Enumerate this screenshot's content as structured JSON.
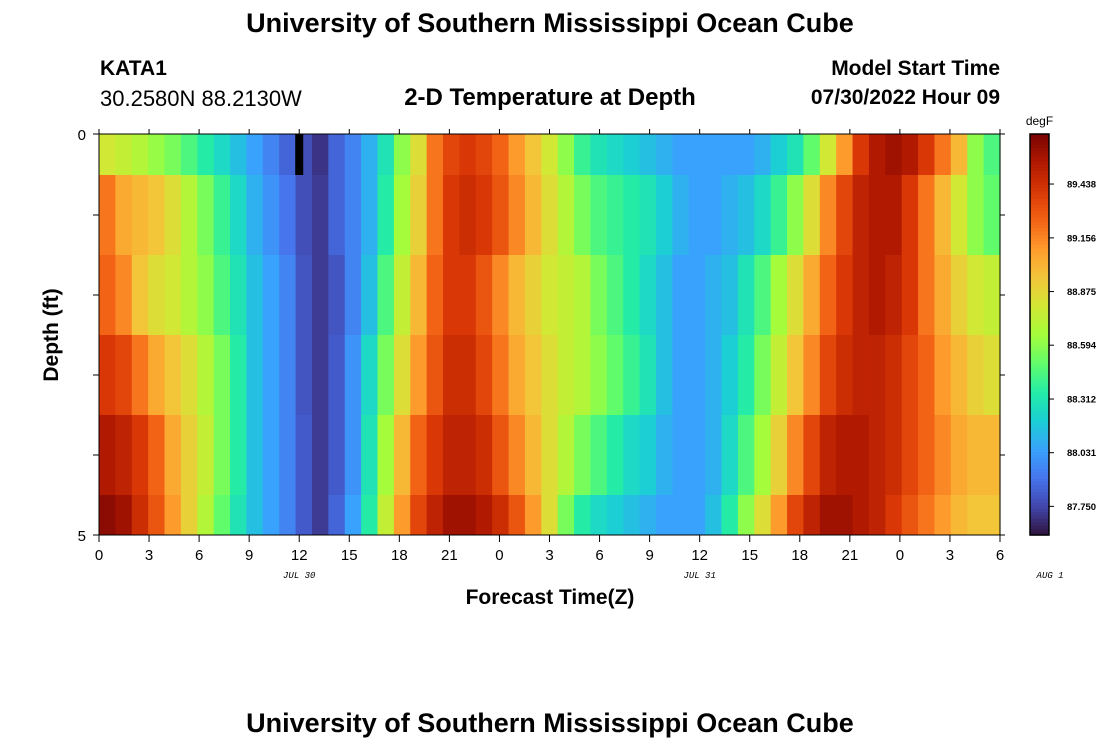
{
  "header": {
    "title_top": "University of Southern Mississippi Ocean Cube",
    "title_bottom": "University of Southern Mississippi Ocean Cube",
    "station_id": "KATA1",
    "station_coords": "30.2580N  88.2130W",
    "plot_title": "2-D Temperature at Depth",
    "start_label": "Model Start Time",
    "start_value": "07/30/2022 Hour 09"
  },
  "chart_data": {
    "type": "heatmap",
    "title": "2-D Temperature at Depth",
    "xlabel": "Forecast Time(Z)",
    "ylabel": "Depth (ft)",
    "x_tick_labels": [
      "0",
      "3",
      "6",
      "9",
      "12",
      "15",
      "18",
      "21",
      "0",
      "3",
      "6",
      "9",
      "12",
      "15",
      "18",
      "21",
      "0",
      "3",
      "6"
    ],
    "x_range_hours": [
      0,
      54
    ],
    "date_labels": [
      {
        "text": "JUL 30",
        "hour": 12
      },
      {
        "text": "JUL 31",
        "hour": 36
      },
      {
        "text": "AUG 1",
        "hour": 57
      }
    ],
    "y_tick_labels": [
      "0",
      "5"
    ],
    "ylim": [
      5,
      0
    ],
    "colorbar": {
      "unit": "degF",
      "min": 87.6,
      "max": 89.7,
      "labels": [
        "87.750",
        "88.031",
        "88.312",
        "88.594",
        "88.875",
        "89.156",
        "89.438"
      ],
      "colors": [
        "#30123b",
        "#4145ab",
        "#4675ed",
        "#39a2fc",
        "#1bcfd4",
        "#24eca6",
        "#61fc6c",
        "#a4fc3b",
        "#d1e834",
        "#f3c63a",
        "#fe9b2d",
        "#f36315",
        "#d93806",
        "#b11901",
        "#7a0402"
      ]
    },
    "x_hours": [
      0,
      1,
      2,
      3,
      4,
      5,
      6,
      7,
      8,
      9,
      10,
      11,
      12,
      13,
      14,
      15,
      16,
      17,
      18,
      19,
      20,
      21,
      22,
      23,
      24,
      25,
      26,
      27,
      28,
      29,
      30,
      31,
      32,
      33,
      34,
      35,
      36,
      37,
      38,
      39,
      40,
      41,
      42,
      43,
      44,
      45,
      46,
      47,
      48,
      49,
      50,
      51,
      52,
      53,
      54
    ],
    "depth_levels_ft": [
      0.25,
      1.0,
      2.0,
      3.0,
      4.0,
      4.75
    ],
    "temperature_degF": [
      [
        88.8,
        88.75,
        88.7,
        88.62,
        88.55,
        88.45,
        88.35,
        88.25,
        88.15,
        88.05,
        87.95,
        87.85,
        87.78,
        87.7,
        87.85,
        87.95,
        88.1,
        88.3,
        88.6,
        88.85,
        89.2,
        89.35,
        89.4,
        89.35,
        89.25,
        89.1,
        88.95,
        88.8,
        88.6,
        88.4,
        88.3,
        88.25,
        88.2,
        88.15,
        88.1,
        88.05,
        88.05,
        88.05,
        88.05,
        88.05,
        88.1,
        88.2,
        88.3,
        88.5,
        88.8,
        89.1,
        89.4,
        89.55,
        89.6,
        89.55,
        89.4,
        89.2,
        89.0,
        88.6,
        88.45
      ],
      [
        89.2,
        89.05,
        89.0,
        88.95,
        88.85,
        88.7,
        88.55,
        88.4,
        88.25,
        88.1,
        88.0,
        87.9,
        87.78,
        87.72,
        87.85,
        87.95,
        88.1,
        88.35,
        88.65,
        88.9,
        89.2,
        89.4,
        89.45,
        89.4,
        89.3,
        89.15,
        89.0,
        88.85,
        88.7,
        88.55,
        88.45,
        88.4,
        88.35,
        88.3,
        88.2,
        88.1,
        88.05,
        88.05,
        88.1,
        88.15,
        88.25,
        88.4,
        88.6,
        88.85,
        89.15,
        89.35,
        89.5,
        89.55,
        89.55,
        89.4,
        89.2,
        89.0,
        88.8,
        88.6,
        88.5
      ],
      [
        89.25,
        89.15,
        88.95,
        88.85,
        88.8,
        88.7,
        88.6,
        88.45,
        88.3,
        88.15,
        88.05,
        87.95,
        87.8,
        87.72,
        87.8,
        87.95,
        88.15,
        88.45,
        88.75,
        89.0,
        89.25,
        89.4,
        89.4,
        89.3,
        89.15,
        89.0,
        88.9,
        88.8,
        88.75,
        88.7,
        88.55,
        88.45,
        88.35,
        88.25,
        88.15,
        88.05,
        88.05,
        88.1,
        88.15,
        88.3,
        88.45,
        88.65,
        88.85,
        89.05,
        89.25,
        89.4,
        89.5,
        89.55,
        89.5,
        89.4,
        89.2,
        89.05,
        88.9,
        88.8,
        88.75
      ],
      [
        89.4,
        89.35,
        89.2,
        89.05,
        88.95,
        88.85,
        88.7,
        88.55,
        88.35,
        88.15,
        88.05,
        87.95,
        87.8,
        87.72,
        87.82,
        88.0,
        88.25,
        88.55,
        88.85,
        89.1,
        89.3,
        89.45,
        89.45,
        89.35,
        89.2,
        89.05,
        88.95,
        88.85,
        88.75,
        88.7,
        88.6,
        88.5,
        88.4,
        88.3,
        88.15,
        88.05,
        88.05,
        88.1,
        88.2,
        88.35,
        88.55,
        88.75,
        88.95,
        89.15,
        89.35,
        89.45,
        89.5,
        89.5,
        89.45,
        89.35,
        89.25,
        89.1,
        89.0,
        88.9,
        88.85
      ],
      [
        89.55,
        89.5,
        89.4,
        89.25,
        89.05,
        88.9,
        88.75,
        88.55,
        88.35,
        88.15,
        88.05,
        87.95,
        87.82,
        87.72,
        87.82,
        88.0,
        88.3,
        88.65,
        89.0,
        89.25,
        89.4,
        89.5,
        89.5,
        89.45,
        89.3,
        89.15,
        89.0,
        88.85,
        88.7,
        88.55,
        88.45,
        88.35,
        88.25,
        88.2,
        88.1,
        88.05,
        88.05,
        88.1,
        88.25,
        88.45,
        88.65,
        88.9,
        89.15,
        89.35,
        89.5,
        89.55,
        89.55,
        89.5,
        89.45,
        89.35,
        89.25,
        89.15,
        89.05,
        89.0,
        89.0
      ],
      [
        89.65,
        89.6,
        89.45,
        89.3,
        89.1,
        88.9,
        88.7,
        88.5,
        88.3,
        88.15,
        88.05,
        87.95,
        87.82,
        87.72,
        87.85,
        88.05,
        88.35,
        88.75,
        89.1,
        89.35,
        89.5,
        89.6,
        89.6,
        89.55,
        89.45,
        89.3,
        89.1,
        88.85,
        88.55,
        88.35,
        88.25,
        88.2,
        88.15,
        88.1,
        88.05,
        88.05,
        88.05,
        88.15,
        88.35,
        88.6,
        88.85,
        89.1,
        89.35,
        89.5,
        89.6,
        89.6,
        89.55,
        89.5,
        89.4,
        89.3,
        89.2,
        89.1,
        89.0,
        88.95,
        88.95
      ]
    ],
    "missing_cells": [
      {
        "hour": 12,
        "depth_row": 0
      }
    ]
  }
}
